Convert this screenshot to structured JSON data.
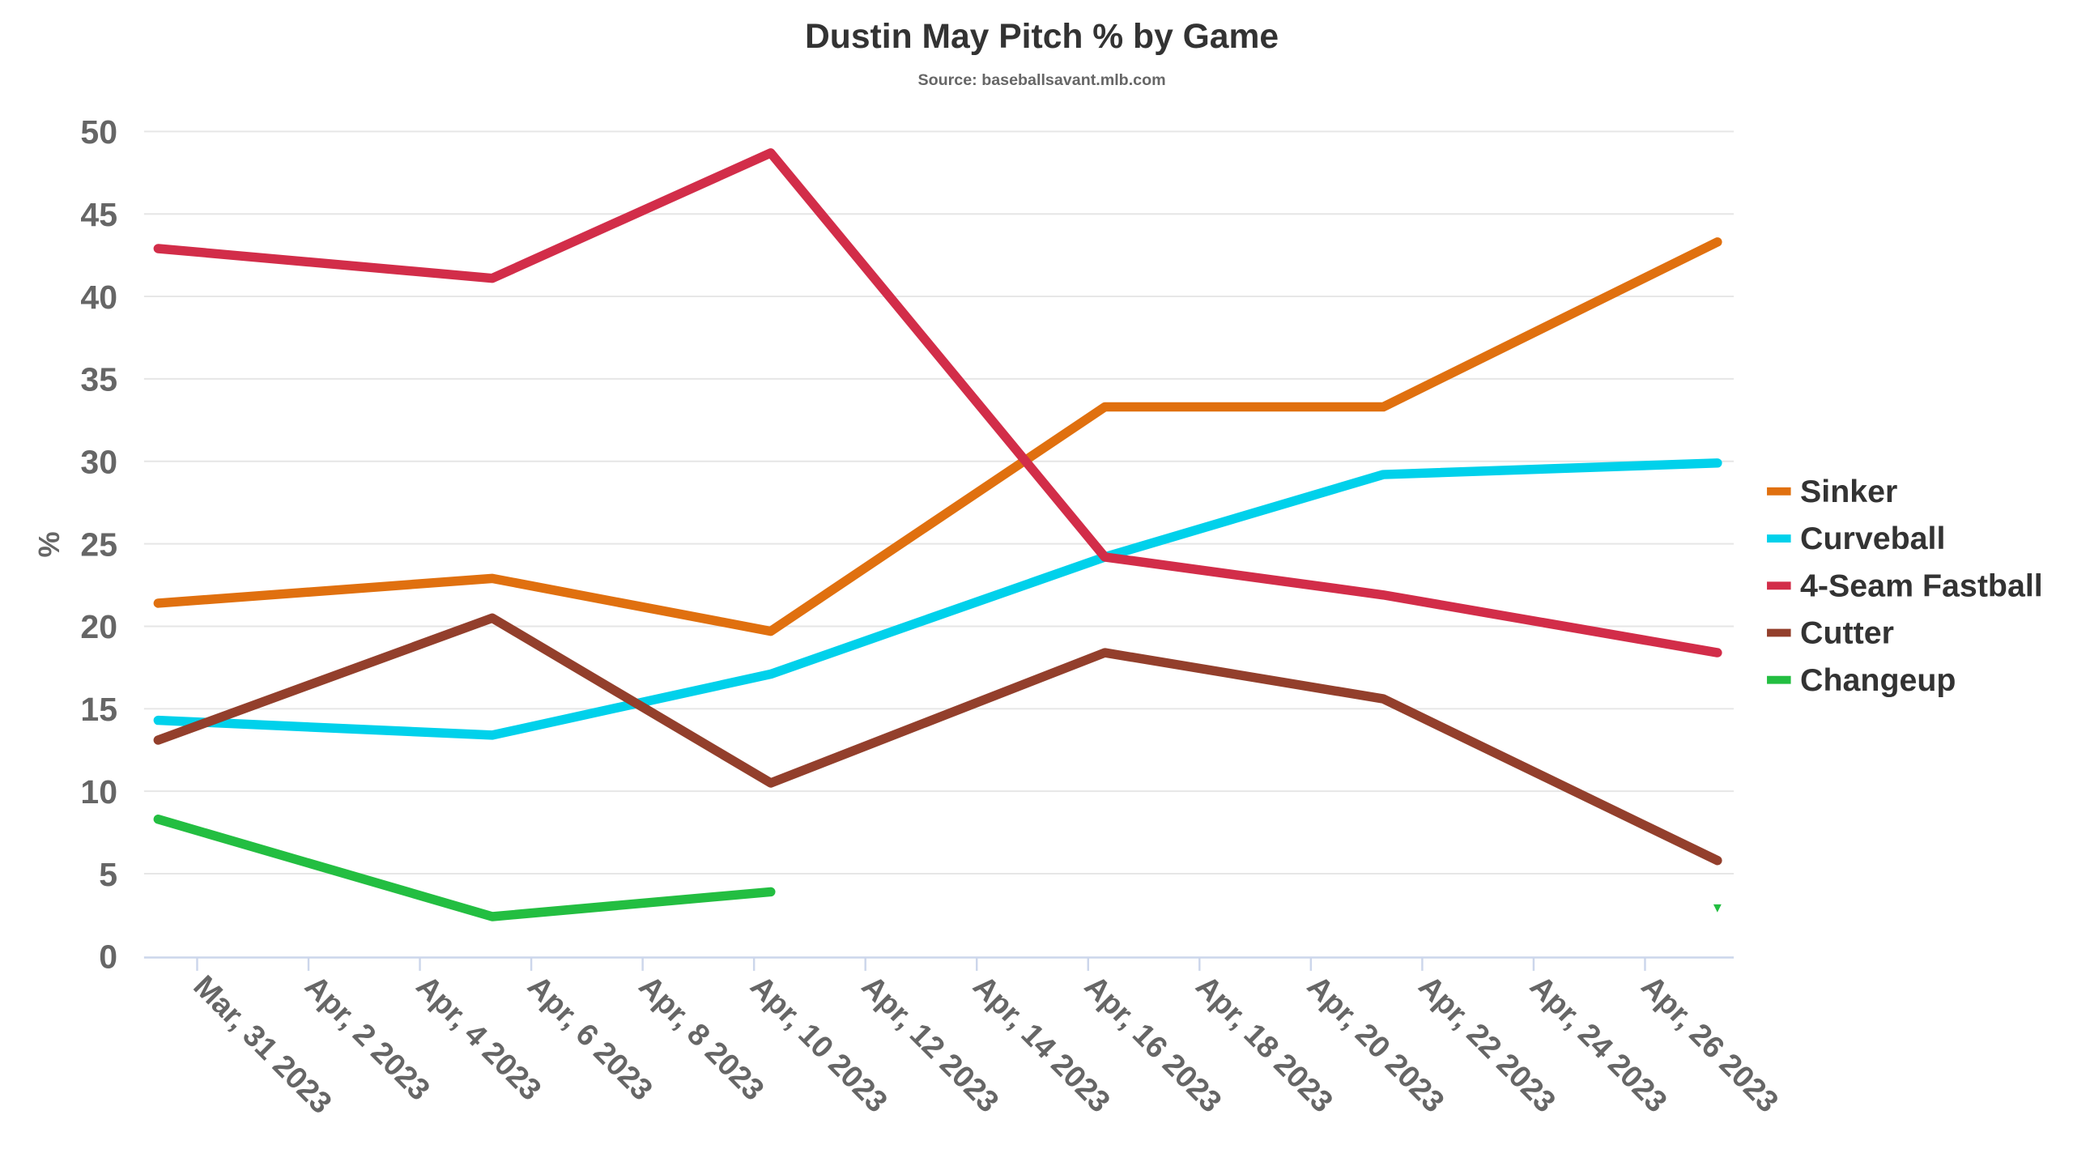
{
  "chart_data": {
    "type": "line",
    "title": "Dustin May Pitch % by Game",
    "subtitle": "Source: baseballsavant.mlb.com",
    "xlabel": "",
    "ylabel": "%",
    "ylim": [
      0,
      50
    ],
    "yticks": [
      0,
      5,
      10,
      15,
      20,
      25,
      30,
      35,
      40,
      45,
      50
    ],
    "grid": true,
    "legend_position": "right",
    "x_dates": [
      "2023-03-30",
      "2023-04-05",
      "2023-04-10",
      "2023-04-16",
      "2023-04-21",
      "2023-04-27"
    ],
    "xticks": [
      "Mar, 31 2023",
      "Apr, 2 2023",
      "Apr, 4 2023",
      "Apr, 6 2023",
      "Apr, 8 2023",
      "Apr, 10 2023",
      "Apr, 12 2023",
      "Apr, 14 2023",
      "Apr, 16 2023",
      "Apr, 18 2023",
      "Apr, 20 2023",
      "Apr, 22 2023",
      "Apr, 24 2023",
      "Apr, 26 2023"
    ],
    "series": [
      {
        "name": "Sinker",
        "color": "#e0700f",
        "values": [
          21.4,
          22.9,
          19.7,
          33.3,
          33.3,
          43.3
        ]
      },
      {
        "name": "Curveball",
        "color": "#00d1eb",
        "values": [
          14.3,
          13.4,
          17.1,
          24.2,
          29.2,
          29.9
        ]
      },
      {
        "name": "4-Seam Fastball",
        "color": "#d22d49",
        "values": [
          42.9,
          41.1,
          48.7,
          24.2,
          21.9,
          18.4
        ]
      },
      {
        "name": "Cutter",
        "color": "#933f2c",
        "values": [
          13.1,
          20.5,
          10.5,
          18.4,
          15.6,
          5.8
        ]
      },
      {
        "name": "Changeup",
        "color": "#23be41",
        "values": [
          8.3,
          2.4,
          3.9,
          null,
          null,
          2.9
        ]
      }
    ]
  }
}
